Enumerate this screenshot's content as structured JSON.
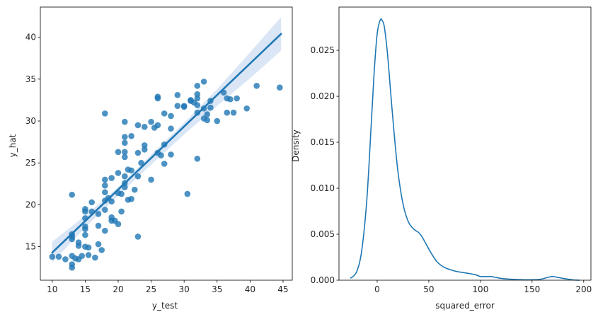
{
  "chart_data": [
    {
      "type": "scatter",
      "title": "",
      "xlabel": "y_test",
      "ylabel": "y_hat",
      "xlim": [
        8.2,
        46.4
      ],
      "ylim": [
        11.0,
        43.6
      ],
      "xticks": [
        10,
        15,
        20,
        25,
        30,
        35,
        40,
        45
      ],
      "yticks": [
        15,
        20,
        25,
        30,
        35,
        40
      ],
      "grid": false,
      "point_color": "#1f77b4",
      "line_color": "#1f77b4",
      "band_color": "#aec7e8",
      "points": [
        [
          10.0,
          13.8
        ],
        [
          11.0,
          13.8
        ],
        [
          12.0,
          13.5
        ],
        [
          13.0,
          12.5
        ],
        [
          13.0,
          12.9
        ],
        [
          13.0,
          13.9
        ],
        [
          13.0,
          15.9
        ],
        [
          13.0,
          16.2
        ],
        [
          13.0,
          16.5
        ],
        [
          13.0,
          21.2
        ],
        [
          13.5,
          13.6
        ],
        [
          14.0,
          13.5
        ],
        [
          14.0,
          15.1
        ],
        [
          14.0,
          15.5
        ],
        [
          14.5,
          13.9
        ],
        [
          15.0,
          15.0
        ],
        [
          15.0,
          16.4
        ],
        [
          15.0,
          17.1
        ],
        [
          15.0,
          17.4
        ],
        [
          15.0,
          18.4
        ],
        [
          15.0,
          19.2
        ],
        [
          15.0,
          19.5
        ],
        [
          15.5,
          14.0
        ],
        [
          15.5,
          14.9
        ],
        [
          16.0,
          19.2
        ],
        [
          16.0,
          20.3
        ],
        [
          16.5,
          13.7
        ],
        [
          17.0,
          15.3
        ],
        [
          17.0,
          17.5
        ],
        [
          17.0,
          18.9
        ],
        [
          17.5,
          14.6
        ],
        [
          18.0,
          16.9
        ],
        [
          18.0,
          19.4
        ],
        [
          18.0,
          20.5
        ],
        [
          18.0,
          21.5
        ],
        [
          18.0,
          22.3
        ],
        [
          18.0,
          23.0
        ],
        [
          18.0,
          30.9
        ],
        [
          18.5,
          20.8
        ],
        [
          19.0,
          18.1
        ],
        [
          19.0,
          18.5
        ],
        [
          19.0,
          20.4
        ],
        [
          19.0,
          23.2
        ],
        [
          19.5,
          18.1
        ],
        [
          20.0,
          17.7
        ],
        [
          20.0,
          21.4
        ],
        [
          20.0,
          23.8
        ],
        [
          20.0,
          26.3
        ],
        [
          20.5,
          19.2
        ],
        [
          20.5,
          21.3
        ],
        [
          21.0,
          22.1
        ],
        [
          21.0,
          22.6
        ],
        [
          21.0,
          23.4
        ],
        [
          21.0,
          25.7
        ],
        [
          21.0,
          26.3
        ],
        [
          21.0,
          27.4
        ],
        [
          21.0,
          28.1
        ],
        [
          21.0,
          29.9
        ],
        [
          21.5,
          20.6
        ],
        [
          21.5,
          24.2
        ],
        [
          22.0,
          20.7
        ],
        [
          22.0,
          24.1
        ],
        [
          22.0,
          28.2
        ],
        [
          22.5,
          21.8
        ],
        [
          23.0,
          16.2
        ],
        [
          23.0,
          23.4
        ],
        [
          23.0,
          26.2
        ],
        [
          23.0,
          29.5
        ],
        [
          23.5,
          25.0
        ],
        [
          24.0,
          26.6
        ],
        [
          24.0,
          27.1
        ],
        [
          24.0,
          29.3
        ],
        [
          25.0,
          23.0
        ],
        [
          25.0,
          29.9
        ],
        [
          25.5,
          29.2
        ],
        [
          26.0,
          26.2
        ],
        [
          26.0,
          29.5
        ],
        [
          26.0,
          32.7
        ],
        [
          26.0,
          32.9
        ],
        [
          26.5,
          25.9
        ],
        [
          27.0,
          24.9
        ],
        [
          27.0,
          27.2
        ],
        [
          27.0,
          30.9
        ],
        [
          28.0,
          26.0
        ],
        [
          28.0,
          29.1
        ],
        [
          28.0,
          30.6
        ],
        [
          29.0,
          31.8
        ],
        [
          29.0,
          33.1
        ],
        [
          30.0,
          31.7
        ],
        [
          30.0,
          31.8
        ],
        [
          30.5,
          21.3
        ],
        [
          31.0,
          32.4
        ],
        [
          31.0,
          32.5
        ],
        [
          31.5,
          32.2
        ],
        [
          32.0,
          25.5
        ],
        [
          32.0,
          31.0
        ],
        [
          32.0,
          31.9
        ],
        [
          32.0,
          32.7
        ],
        [
          32.0,
          33.2
        ],
        [
          32.0,
          34.2
        ],
        [
          33.0,
          30.3
        ],
        [
          33.0,
          31.5
        ],
        [
          33.0,
          34.7
        ],
        [
          33.5,
          30.1
        ],
        [
          33.5,
          30.8
        ],
        [
          34.0,
          31.6
        ],
        [
          34.0,
          32.4
        ],
        [
          35.0,
          30.0
        ],
        [
          36.0,
          33.4
        ],
        [
          36.5,
          31.0
        ],
        [
          36.5,
          32.7
        ],
        [
          37.0,
          32.6
        ],
        [
          37.5,
          31.0
        ],
        [
          38.0,
          32.7
        ],
        [
          39.5,
          31.5
        ],
        [
          41.0,
          34.2
        ],
        [
          44.5,
          34.0
        ]
      ],
      "regression": {
        "x": [
          10.0,
          44.7
        ],
        "y": [
          14.3,
          40.4
        ]
      },
      "confidence_band": {
        "x": [
          10.0,
          15.0,
          20.0,
          25.0,
          30.0,
          35.0,
          40.0,
          44.7
        ],
        "upper": [
          15.6,
          18.7,
          22.1,
          26.0,
          29.8,
          33.8,
          38.2,
          42.4
        ],
        "lower": [
          13.1,
          17.3,
          21.1,
          24.8,
          28.4,
          31.8,
          35.1,
          38.4
        ]
      }
    },
    {
      "type": "line",
      "title": "",
      "xlabel": "squared_error",
      "ylabel": "Density",
      "xlim": [
        -37.0,
        207.0
      ],
      "ylim": [
        0.0,
        0.0297
      ],
      "xticks": [
        0,
        50,
        100,
        150,
        200
      ],
      "yticks": [
        0.0,
        0.005,
        0.01,
        0.015,
        0.02,
        0.025
      ],
      "ytick_labels": [
        "0.000",
        "0.005",
        "0.010",
        "0.015",
        "0.020",
        "0.025"
      ],
      "grid": false,
      "line_color": "#1f77b4",
      "x": [
        -26,
        -20,
        -15,
        -10,
        -6,
        -3,
        0,
        3,
        5,
        7,
        10,
        13,
        16,
        20,
        25,
        30,
        35,
        40,
        43,
        47,
        52,
        58,
        65,
        75,
        85,
        95,
        100,
        105,
        110,
        115,
        120,
        130,
        140,
        150,
        158,
        165,
        170,
        175,
        180,
        190,
        196
      ],
      "y": [
        0.0002,
        0.0009,
        0.0032,
        0.0088,
        0.0165,
        0.0225,
        0.0268,
        0.0283,
        0.0282,
        0.0275,
        0.0246,
        0.0205,
        0.0165,
        0.0119,
        0.0083,
        0.0064,
        0.0056,
        0.0052,
        0.0048,
        0.004,
        0.003,
        0.002,
        0.0014,
        0.001,
        0.0008,
        0.0006,
        0.0004,
        0.0004,
        0.0004,
        0.0003,
        0.0002,
        0.0001,
        5e-05,
        5e-05,
        0.0001,
        0.0003,
        0.0004,
        0.0003,
        0.0002,
        3e-05,
        0.0
      ]
    }
  ]
}
